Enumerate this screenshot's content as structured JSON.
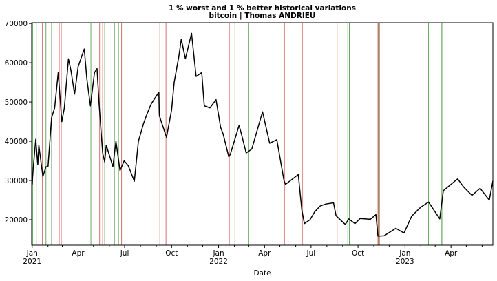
{
  "chart_data": {
    "type": "line",
    "title": "1 % worst and 1 % better historical variations",
    "subtitle": "bitcoin | Thomas ANDRIEU",
    "x_label": "Date",
    "x": [
      "2021-01-01",
      "2021-01-03",
      "2021-01-08",
      "2021-01-12",
      "2021-01-14",
      "2021-01-22",
      "2021-01-28",
      "2021-02-01",
      "2021-02-08",
      "2021-02-14",
      "2021-02-21",
      "2021-02-28",
      "2021-03-05",
      "2021-03-13",
      "2021-03-18",
      "2021-03-25",
      "2021-04-01",
      "2021-04-13",
      "2021-04-18",
      "2021-04-25",
      "2021-05-03",
      "2021-05-08",
      "2021-05-12",
      "2021-05-19",
      "2021-05-23",
      "2021-05-26",
      "2021-06-01",
      "2021-06-08",
      "2021-06-14",
      "2021-06-22",
      "2021-06-30",
      "2021-07-08",
      "2021-07-20",
      "2021-07-28",
      "2021-08-07",
      "2021-08-14",
      "2021-08-22",
      "2021-09-06",
      "2021-09-07",
      "2021-09-21",
      "2021-10-01",
      "2021-10-06",
      "2021-10-15",
      "2021-10-20",
      "2021-10-28",
      "2021-11-09",
      "2021-11-18",
      "2021-11-29",
      "2021-12-04",
      "2021-12-15",
      "2021-12-27",
      "2022-01-05",
      "2022-01-10",
      "2022-01-21",
      "2022-01-24",
      "2022-02-10",
      "2022-02-14",
      "2022-02-24",
      "2022-03-07",
      "2022-03-28",
      "2022-04-11",
      "2022-04-25",
      "2022-05-09",
      "2022-05-12",
      "2022-06-06",
      "2022-06-13",
      "2022-06-18",
      "2022-06-29",
      "2022-07-08",
      "2022-07-19",
      "2022-07-30",
      "2022-08-14",
      "2022-08-19",
      "2022-09-06",
      "2022-09-13",
      "2022-09-25",
      "2022-10-05",
      "2022-10-25",
      "2022-11-05",
      "2022-11-09",
      "2022-11-21",
      "2022-12-14",
      "2022-12-30",
      "2023-01-14",
      "2023-01-31",
      "2023-02-16",
      "2023-03-10",
      "2023-03-17",
      "2023-04-14",
      "2023-04-26",
      "2023-05-12",
      "2023-05-28",
      "2023-06-15",
      "2023-06-22"
    ],
    "series": [
      {
        "color": "#000000",
        "values": [
          29000,
          33000,
          40500,
          34000,
          39000,
          31000,
          33500,
          33500,
          46000,
          48500,
          57500,
          45000,
          48500,
          61000,
          58000,
          52000,
          59000,
          63500,
          56000,
          49000,
          57500,
          58500,
          49500,
          37000,
          34700,
          39000,
          36500,
          33500,
          40000,
          32500,
          35000,
          33800,
          29800,
          40000,
          44500,
          47000,
          49500,
          52500,
          46500,
          41000,
          48000,
          55000,
          61500,
          66000,
          61000,
          67500,
          56500,
          57500,
          49000,
          48500,
          50600,
          43500,
          41800,
          36000,
          36700,
          44000,
          42200,
          37000,
          38000,
          47500,
          39500,
          40400,
          30000,
          29000,
          31500,
          22400,
          19000,
          20000,
          22000,
          23500,
          24000,
          24300,
          21000,
          18800,
          20200,
          19000,
          20300,
          20100,
          21300,
          15800,
          15900,
          17800,
          16600,
          20900,
          23100,
          24500,
          20200,
          27400,
          30400,
          28300,
          26200,
          28000,
          25000,
          29900
        ]
      }
    ],
    "worst_days": {
      "color": "#d9706b",
      "x": [
        "2021-01-21",
        "2021-02-23",
        "2021-02-27",
        "2021-05-13",
        "2021-05-19",
        "2021-06-25",
        "2021-09-08",
        "2021-09-20",
        "2022-01-22",
        "2022-05-10",
        "2022-06-14",
        "2022-06-17",
        "2022-08-21",
        "2022-11-09",
        "2022-11-12"
      ]
    },
    "best_days": {
      "color": "#6aa861",
      "x": [
        "2021-01-02",
        "2021-01-09",
        "2021-01-28",
        "2021-02-08",
        "2021-04-26",
        "2021-05-23",
        "2021-06-11",
        "2021-06-19",
        "2022-02-02",
        "2022-03-01",
        "2022-09-11",
        "2022-09-14",
        "2022-11-10",
        "2023-02-16",
        "2023-03-14",
        "2023-03-16"
      ]
    },
    "xlim": [
      "2020-12-31",
      "2023-06-22"
    ],
    "xticks": [
      {
        "value": "2021-01-01",
        "label": "Jan\n2021"
      },
      {
        "value": "2021-04-01",
        "label": "Apr"
      },
      {
        "value": "2021-07-01",
        "label": "Jul"
      },
      {
        "value": "2021-10-01",
        "label": "Oct"
      },
      {
        "value": "2022-01-01",
        "label": "Jan\n2022"
      },
      {
        "value": "2022-04-01",
        "label": "Apr"
      },
      {
        "value": "2022-07-01",
        "label": "Jul"
      },
      {
        "value": "2022-10-01",
        "label": "Oct"
      },
      {
        "value": "2023-01-01",
        "label": "Jan\n2023"
      },
      {
        "value": "2023-04-01",
        "label": "Apr"
      }
    ],
    "xminorticks": [
      "2021-02-01",
      "2021-03-01",
      "2021-05-01",
      "2021-06-01",
      "2021-08-01",
      "2021-09-01",
      "2021-11-01",
      "2021-12-01",
      "2022-02-01",
      "2022-03-01",
      "2022-05-01",
      "2022-06-01",
      "2022-08-01",
      "2022-09-01",
      "2022-11-01",
      "2022-12-01",
      "2023-02-01",
      "2023-03-01",
      "2023-05-01",
      "2023-06-01"
    ],
    "ylim": [
      13500,
      70200
    ],
    "yticks": [
      20000,
      30000,
      40000,
      50000,
      60000,
      70000
    ],
    "grid": false
  }
}
